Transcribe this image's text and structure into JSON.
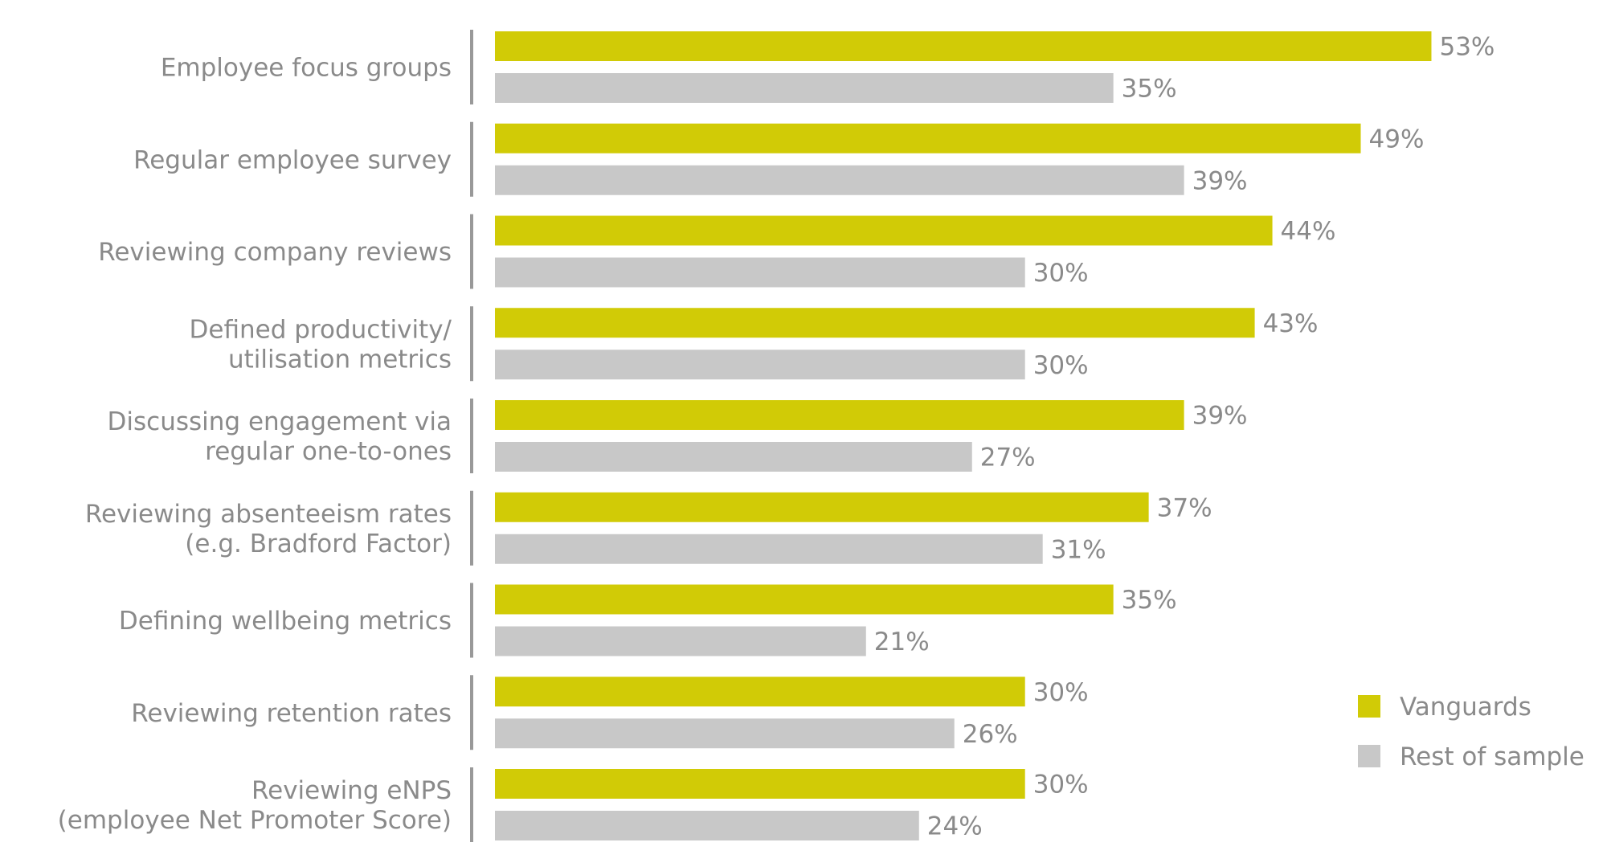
{
  "chart_data": {
    "type": "bar",
    "orientation": "horizontal",
    "categories": [
      [
        "Employee focus groups"
      ],
      [
        "Regular employee survey"
      ],
      [
        "Reviewing company reviews"
      ],
      [
        "Defined productivity/",
        "utilisation metrics"
      ],
      [
        "Discussing engagement via",
        "regular one-to-ones"
      ],
      [
        "Reviewing absenteeism rates",
        "(e.g. Bradford Factor)"
      ],
      [
        "Defining wellbeing metrics"
      ],
      [
        "Reviewing retention rates"
      ],
      [
        "Reviewing eNPS",
        "(employee Net Promoter Score)"
      ]
    ],
    "series": [
      {
        "name": "Vanguards",
        "color": "#d1cb06",
        "values": [
          53,
          49,
          44,
          43,
          39,
          37,
          35,
          30,
          30
        ],
        "labels": [
          "53%",
          "49%",
          "44%",
          "43%",
          "39%",
          "37%",
          "35%",
          "30%",
          "30%"
        ]
      },
      {
        "name": "Rest of sample",
        "color": "#c8c8c8",
        "values": [
          35,
          39,
          30,
          30,
          27,
          31,
          21,
          26,
          24
        ],
        "labels": [
          "35%",
          "39%",
          "30%",
          "30%",
          "27%",
          "31%",
          "21%",
          "26%",
          "24%"
        ]
      }
    ],
    "xlim": [
      0,
      100
    ],
    "grid": false,
    "legend": "bottom-right",
    "colors": {
      "text": "#8a8a8a",
      "axis": "#999999"
    }
  }
}
